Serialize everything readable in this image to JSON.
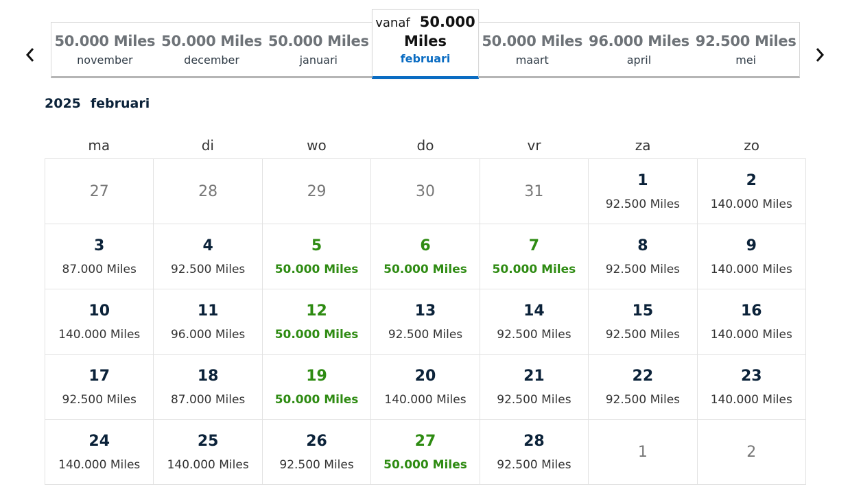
{
  "nav": {
    "prev_icon": "chevron-left-icon",
    "next_icon": "chevron-right-icon"
  },
  "months": [
    {
      "price": "50.000 Miles",
      "name": "november"
    },
    {
      "price": "50.000 Miles",
      "name": "december"
    },
    {
      "price": "50.000 Miles",
      "name": "januari"
    },
    {
      "from_label": "vanaf",
      "price": "50.000",
      "unit": "Miles",
      "name": "februari",
      "selected": true
    },
    {
      "price": "50.000 Miles",
      "name": "maart"
    },
    {
      "price": "96.000 Miles",
      "name": "april"
    },
    {
      "price": "92.500 Miles",
      "name": "mei"
    }
  ],
  "heading": {
    "year": "2025",
    "month": "februari"
  },
  "weekdays": [
    "ma",
    "di",
    "wo",
    "do",
    "vr",
    "za",
    "zo"
  ],
  "colors": {
    "accent": "#0a6cc2",
    "lowest_price": "#2e8b12"
  },
  "weeks": [
    [
      {
        "day": "27",
        "outside": true
      },
      {
        "day": "28",
        "outside": true
      },
      {
        "day": "29",
        "outside": true
      },
      {
        "day": "30",
        "outside": true
      },
      {
        "day": "31",
        "outside": true
      },
      {
        "day": "1",
        "price": "92.500 Miles"
      },
      {
        "day": "2",
        "price": "140.000 Miles"
      }
    ],
    [
      {
        "day": "3",
        "price": "87.000 Miles"
      },
      {
        "day": "4",
        "price": "92.500 Miles"
      },
      {
        "day": "5",
        "price": "50.000 Miles",
        "low": true
      },
      {
        "day": "6",
        "price": "50.000 Miles",
        "low": true
      },
      {
        "day": "7",
        "price": "50.000 Miles",
        "low": true
      },
      {
        "day": "8",
        "price": "92.500 Miles"
      },
      {
        "day": "9",
        "price": "140.000 Miles"
      }
    ],
    [
      {
        "day": "10",
        "price": "140.000 Miles"
      },
      {
        "day": "11",
        "price": "96.000 Miles"
      },
      {
        "day": "12",
        "price": "50.000 Miles",
        "low": true
      },
      {
        "day": "13",
        "price": "92.500 Miles"
      },
      {
        "day": "14",
        "price": "92.500 Miles"
      },
      {
        "day": "15",
        "price": "92.500 Miles"
      },
      {
        "day": "16",
        "price": "140.000 Miles"
      }
    ],
    [
      {
        "day": "17",
        "price": "92.500 Miles"
      },
      {
        "day": "18",
        "price": "87.000 Miles"
      },
      {
        "day": "19",
        "price": "50.000 Miles",
        "low": true
      },
      {
        "day": "20",
        "price": "140.000 Miles"
      },
      {
        "day": "21",
        "price": "92.500 Miles"
      },
      {
        "day": "22",
        "price": "92.500 Miles"
      },
      {
        "day": "23",
        "price": "140.000 Miles"
      }
    ],
    [
      {
        "day": "24",
        "price": "140.000 Miles"
      },
      {
        "day": "25",
        "price": "140.000 Miles"
      },
      {
        "day": "26",
        "price": "92.500 Miles"
      },
      {
        "day": "27",
        "price": "50.000 Miles",
        "low": true
      },
      {
        "day": "28",
        "price": "92.500 Miles"
      },
      {
        "day": "1",
        "outside": true
      },
      {
        "day": "2",
        "outside": true
      }
    ]
  ]
}
